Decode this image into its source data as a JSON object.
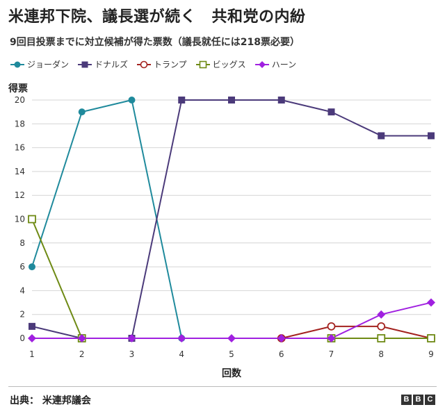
{
  "header": {
    "title": "米連邦下院、議長選が続く　共和党の内紛",
    "subtitle": "9回目投票までに対立候補が得た票数（議長就任には218票必要）"
  },
  "chart_data": {
    "type": "line",
    "title": "米連邦下院、議長選が続く　共和党の内紛",
    "subtitle": "9回目投票までに対立候補が得た票数（議長就任には218票必要）",
    "xlabel": "回数",
    "ylabel": "得票",
    "x": [
      1,
      2,
      3,
      4,
      5,
      6,
      7,
      8,
      9
    ],
    "xticks": [
      "1",
      "2",
      "3",
      "4",
      "5",
      "6",
      "7",
      "8",
      "9"
    ],
    "yticks": [
      "0",
      "2",
      "4",
      "6",
      "8",
      "10",
      "12",
      "14",
      "16",
      "18",
      "20"
    ],
    "ylim": [
      0,
      20
    ],
    "grid": true,
    "legend_position": "top-left",
    "series": [
      {
        "name": "ジョーダン",
        "color": "#1f8a9c",
        "marker": "circle-filled",
        "values": [
          6,
          19,
          20,
          0,
          null,
          null,
          null,
          null,
          null
        ]
      },
      {
        "name": "ドナルズ",
        "color": "#4b3a7a",
        "marker": "square-filled",
        "values": [
          1,
          0,
          0,
          20,
          20,
          20,
          19,
          17,
          17
        ]
      },
      {
        "name": "トランプ",
        "color": "#a3221f",
        "marker": "circle-open",
        "values": [
          null,
          null,
          null,
          null,
          null,
          0,
          1,
          1,
          0
        ]
      },
      {
        "name": "ビッグス",
        "color": "#6e8a14",
        "marker": "square-open",
        "values": [
          10,
          0,
          null,
          null,
          null,
          null,
          0,
          0,
          0
        ]
      },
      {
        "name": "ハーン",
        "color": "#a020e0",
        "marker": "diamond-filled",
        "values": [
          0,
          0,
          0,
          0,
          0,
          0,
          0,
          2,
          3
        ]
      }
    ]
  },
  "footer": {
    "source": "出典： 米連邦議会",
    "brand": [
      "B",
      "B",
      "C"
    ]
  }
}
